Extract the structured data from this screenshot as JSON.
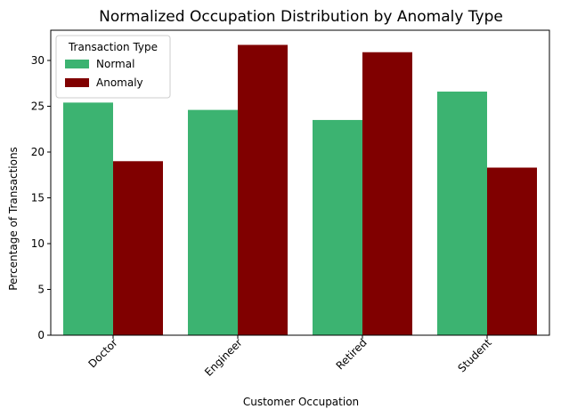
{
  "chart_data": {
    "type": "bar",
    "title": "Normalized Occupation Distribution by Anomaly Type",
    "xlabel": "Customer Occupation",
    "ylabel": "Percentage of Transactions",
    "categories": [
      "Doctor",
      "Engineer",
      "Retired",
      "Student"
    ],
    "series": [
      {
        "name": "Normal",
        "values": [
          25.4,
          24.6,
          23.5,
          26.6
        ],
        "color": "#3cb371"
      },
      {
        "name": "Anomaly",
        "values": [
          19.0,
          31.7,
          30.9,
          18.3
        ],
        "color": "#800000"
      }
    ],
    "ylim": [
      0,
      33.3
    ],
    "yticks": [
      0,
      5,
      10,
      15,
      20,
      25,
      30
    ],
    "legend": {
      "title": "Transaction Type",
      "placement": "top-left"
    },
    "grid": false
  }
}
